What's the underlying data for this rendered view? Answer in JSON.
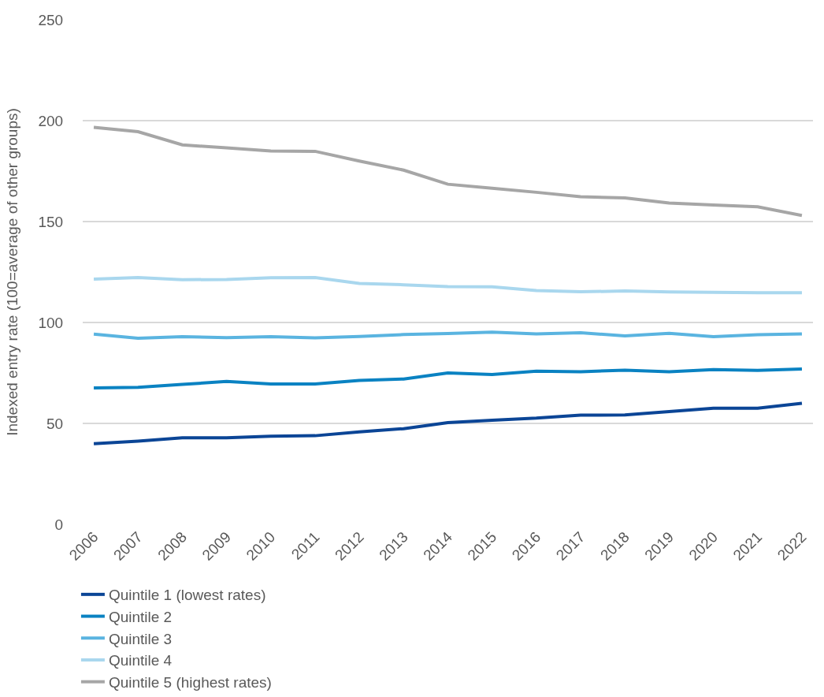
{
  "chart_data": {
    "type": "line",
    "ylabel": "Indexed entry rate (100=average of other groups)",
    "categories": [
      "2006",
      "2007",
      "2008",
      "2009",
      "2010",
      "2011",
      "2012",
      "2013",
      "2014",
      "2015",
      "2016",
      "2017",
      "2018",
      "2019",
      "2020",
      "2021",
      "2022"
    ],
    "series": [
      {
        "name": "Quintile 1 (lowest rates)",
        "color": "#0b4596",
        "values": [
          39.9,
          41.2,
          42.9,
          42.9,
          43.7,
          43.9,
          45.8,
          47.4,
          50.4,
          51.6,
          52.6,
          54.1,
          54.2,
          55.9,
          57.5,
          57.5,
          60.0
        ]
      },
      {
        "name": "Quintile 2",
        "color": "#0a82c2",
        "values": [
          67.6,
          67.9,
          69.3,
          70.8,
          69.5,
          69.5,
          71.3,
          72.0,
          75.0,
          74.2,
          75.9,
          75.6,
          76.4,
          75.6,
          76.7,
          76.3,
          77.0
        ]
      },
      {
        "name": "Quintile 3",
        "color": "#5ab4e0",
        "values": [
          94.2,
          92.2,
          93.0,
          92.5,
          93.0,
          92.4,
          93.1,
          94.0,
          94.5,
          95.2,
          94.3,
          94.9,
          93.4,
          94.6,
          93.0,
          93.9,
          94.3
        ]
      },
      {
        "name": "Quintile 4",
        "color": "#a9d7ee",
        "values": [
          121.5,
          122.3,
          121.2,
          121.3,
          122.2,
          122.3,
          119.3,
          118.7,
          117.8,
          117.7,
          115.8,
          115.2,
          115.6,
          115.1,
          114.9,
          114.7,
          114.7
        ]
      },
      {
        "name": "Quintile 5 (highest rates)",
        "color": "#a6a6a6",
        "values": [
          196.7,
          194.5,
          188.0,
          186.5,
          185.0,
          184.8,
          180.0,
          175.5,
          168.5,
          166.5,
          164.5,
          162.3,
          161.7,
          159.2,
          158.2,
          157.3,
          153.0
        ]
      }
    ],
    "ylim": [
      0,
      250
    ],
    "yticks": [
      0,
      50,
      100,
      150,
      200,
      250
    ],
    "grid": "y",
    "legend": "bottom",
    "marker": "none",
    "line_style": "solid"
  }
}
